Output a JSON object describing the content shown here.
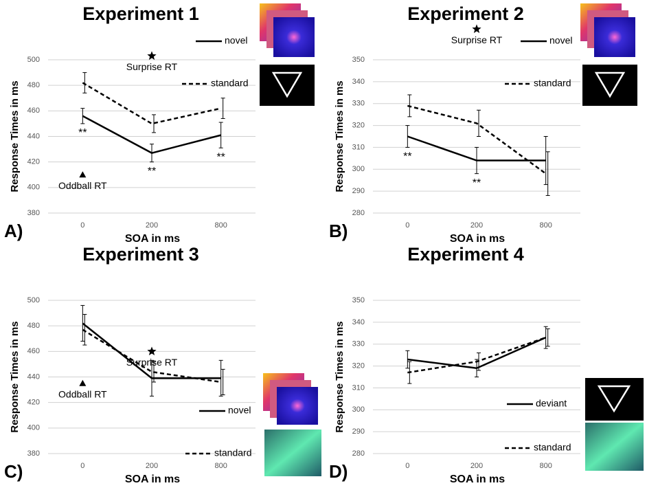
{
  "chart_data": [
    {
      "type": "line",
      "title": "Experiment 1",
      "panel_label": "A)",
      "x_label": "SOA in ms",
      "y_label": "Response Times in ms",
      "categories": [
        "0",
        "200",
        "800"
      ],
      "ylim": [
        380,
        500
      ],
      "yticks": [
        380,
        400,
        420,
        440,
        460,
        480,
        500
      ],
      "grid": true,
      "series": [
        {
          "name": "novel",
          "color": "#000",
          "dash": "solid",
          "values": [
            456,
            427,
            441
          ],
          "errors": [
            6,
            7,
            10
          ],
          "significance": [
            "**",
            "**",
            "**"
          ]
        },
        {
          "name": "standard",
          "color": "#000",
          "dash": "dashed",
          "values": [
            482,
            450,
            462
          ],
          "errors": [
            8,
            7,
            8
          ]
        }
      ],
      "annotations": [
        {
          "text": "Surprise RT",
          "marker": "star",
          "x": "200",
          "value": 503
        },
        {
          "text": "Oddball RT",
          "marker": "triangle",
          "x": "0",
          "value": 410
        }
      ]
    },
    {
      "type": "line",
      "title": "Experiment 2",
      "panel_label": "B)",
      "x_label": "SOA in ms",
      "y_label": "Response Times in ms",
      "categories": [
        "0",
        "200",
        "800"
      ],
      "ylim": [
        280,
        350
      ],
      "yticks": [
        280,
        290,
        300,
        310,
        320,
        330,
        340,
        350
      ],
      "grid": true,
      "series": [
        {
          "name": "novel",
          "color": "#000",
          "dash": "solid",
          "values": [
            315,
            304,
            304
          ],
          "errors": [
            5,
            6,
            11
          ],
          "significance": [
            "**",
            "**",
            null
          ]
        },
        {
          "name": "standard",
          "color": "#000",
          "dash": "dashed",
          "values": [
            329,
            321,
            298
          ],
          "errors": [
            5,
            6,
            10
          ]
        }
      ],
      "annotations": [
        {
          "text": "Surprise RT",
          "marker": "star",
          "x": "200",
          "value": 364
        }
      ]
    },
    {
      "type": "line",
      "title": "Experiment 3",
      "panel_label": "C)",
      "x_label": "SOA in ms",
      "y_label": "Response Times in ms",
      "categories": [
        "0",
        "200",
        "800"
      ],
      "ylim": [
        380,
        500
      ],
      "yticks": [
        380,
        400,
        420,
        440,
        460,
        480,
        500
      ],
      "grid": true,
      "series": [
        {
          "name": "novel",
          "color": "#000",
          "dash": "solid",
          "values": [
            482,
            439,
            439
          ],
          "errors": [
            14,
            14,
            14
          ]
        },
        {
          "name": "standard",
          "color": "#000",
          "dash": "dashed",
          "values": [
            477,
            444,
            436
          ],
          "errors": [
            12,
            8,
            10
          ]
        }
      ],
      "annotations": [
        {
          "text": "Surprise RT",
          "marker": "star",
          "x": "200",
          "value": 460
        },
        {
          "text": "Oddball RT",
          "marker": "triangle",
          "x": "0",
          "value": 435
        }
      ]
    },
    {
      "type": "line",
      "title": "Experiment 4",
      "panel_label": "D)",
      "x_label": "SOA in ms",
      "y_label": "Response Times in ms",
      "categories": [
        "0",
        "200",
        "800"
      ],
      "ylim": [
        280,
        350
      ],
      "yticks": [
        280,
        290,
        300,
        310,
        320,
        330,
        340,
        350
      ],
      "grid": true,
      "series": [
        {
          "name": "deviant",
          "color": "#000",
          "dash": "solid",
          "values": [
            323,
            319,
            333
          ],
          "errors": [
            4,
            4,
            5
          ]
        },
        {
          "name": "standard",
          "color": "#000",
          "dash": "dashed",
          "values": [
            317,
            322,
            333
          ],
          "errors": [
            5,
            4,
            4
          ]
        }
      ],
      "annotations": []
    }
  ]
}
